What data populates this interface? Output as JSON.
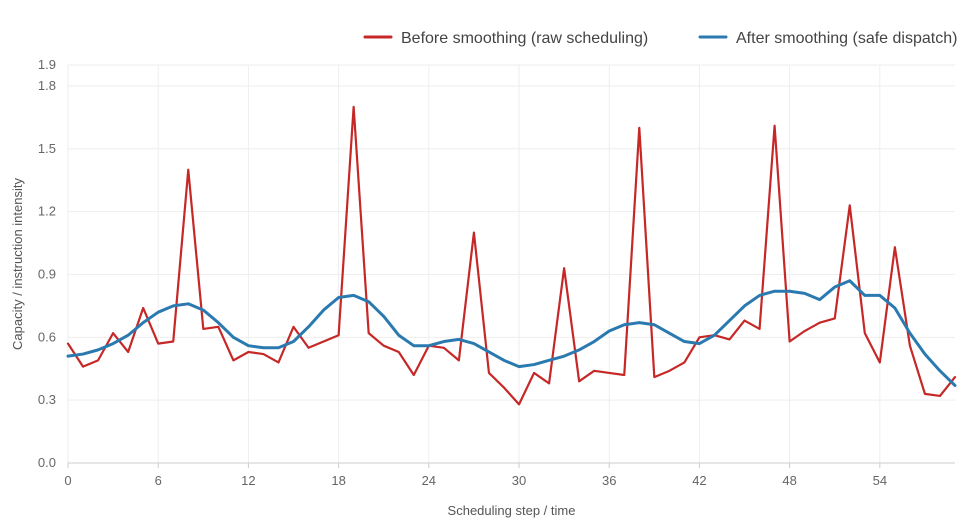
{
  "chart_data": {
    "type": "line",
    "xlabel": "Scheduling step / time",
    "ylabel": "Capacity / instruction intensity",
    "xlim": [
      0,
      59
    ],
    "ylim": [
      0,
      1.9
    ],
    "x_ticks": [
      0,
      6,
      12,
      18,
      24,
      30,
      36,
      42,
      48,
      54
    ],
    "y_ticks": [
      0.0,
      0.3,
      0.6,
      0.9,
      1.2,
      1.5,
      1.8,
      1.9
    ],
    "grid": true,
    "legend_position": "top-right",
    "x": [
      0,
      1,
      2,
      3,
      4,
      5,
      6,
      7,
      8,
      9,
      10,
      11,
      12,
      13,
      14,
      15,
      16,
      17,
      18,
      19,
      20,
      21,
      22,
      23,
      24,
      25,
      26,
      27,
      28,
      29,
      30,
      31,
      32,
      33,
      34,
      35,
      36,
      37,
      38,
      39,
      40,
      41,
      42,
      43,
      44,
      45,
      46,
      47,
      48,
      49,
      50,
      51,
      52,
      53,
      54,
      55,
      56,
      57,
      58,
      59
    ],
    "series": [
      {
        "name": "Before smoothing (raw scheduling)",
        "color": "#c62828",
        "values": [
          0.57,
          0.46,
          0.49,
          0.62,
          0.53,
          0.74,
          0.57,
          0.58,
          1.4,
          0.64,
          0.65,
          0.49,
          0.53,
          0.52,
          0.48,
          0.65,
          0.55,
          0.58,
          0.61,
          1.7,
          0.62,
          0.56,
          0.53,
          0.42,
          0.56,
          0.55,
          0.49,
          1.1,
          0.43,
          0.36,
          0.28,
          0.43,
          0.38,
          0.93,
          0.39,
          0.44,
          0.43,
          0.42,
          1.6,
          0.41,
          0.44,
          0.48,
          0.6,
          0.61,
          0.59,
          0.68,
          0.64,
          1.61,
          0.58,
          0.63,
          0.67,
          0.69,
          1.23,
          0.62,
          0.48,
          1.03,
          0.56,
          0.33,
          0.32,
          0.41
        ]
      },
      {
        "name": "After smoothing (safe dispatch)",
        "color": "#2a7ab0",
        "values": [
          0.51,
          0.52,
          0.54,
          0.57,
          0.61,
          0.67,
          0.72,
          0.75,
          0.76,
          0.73,
          0.67,
          0.6,
          0.56,
          0.55,
          0.55,
          0.58,
          0.65,
          0.73,
          0.79,
          0.8,
          0.77,
          0.7,
          0.61,
          0.56,
          0.56,
          0.58,
          0.59,
          0.57,
          0.53,
          0.49,
          0.46,
          0.47,
          0.49,
          0.51,
          0.54,
          0.58,
          0.63,
          0.66,
          0.67,
          0.66,
          0.62,
          0.58,
          0.57,
          0.61,
          0.68,
          0.75,
          0.8,
          0.82,
          0.82,
          0.81,
          0.78,
          0.84,
          0.87,
          0.8,
          0.8,
          0.74,
          0.62,
          0.52,
          0.44,
          0.37
        ]
      }
    ]
  }
}
